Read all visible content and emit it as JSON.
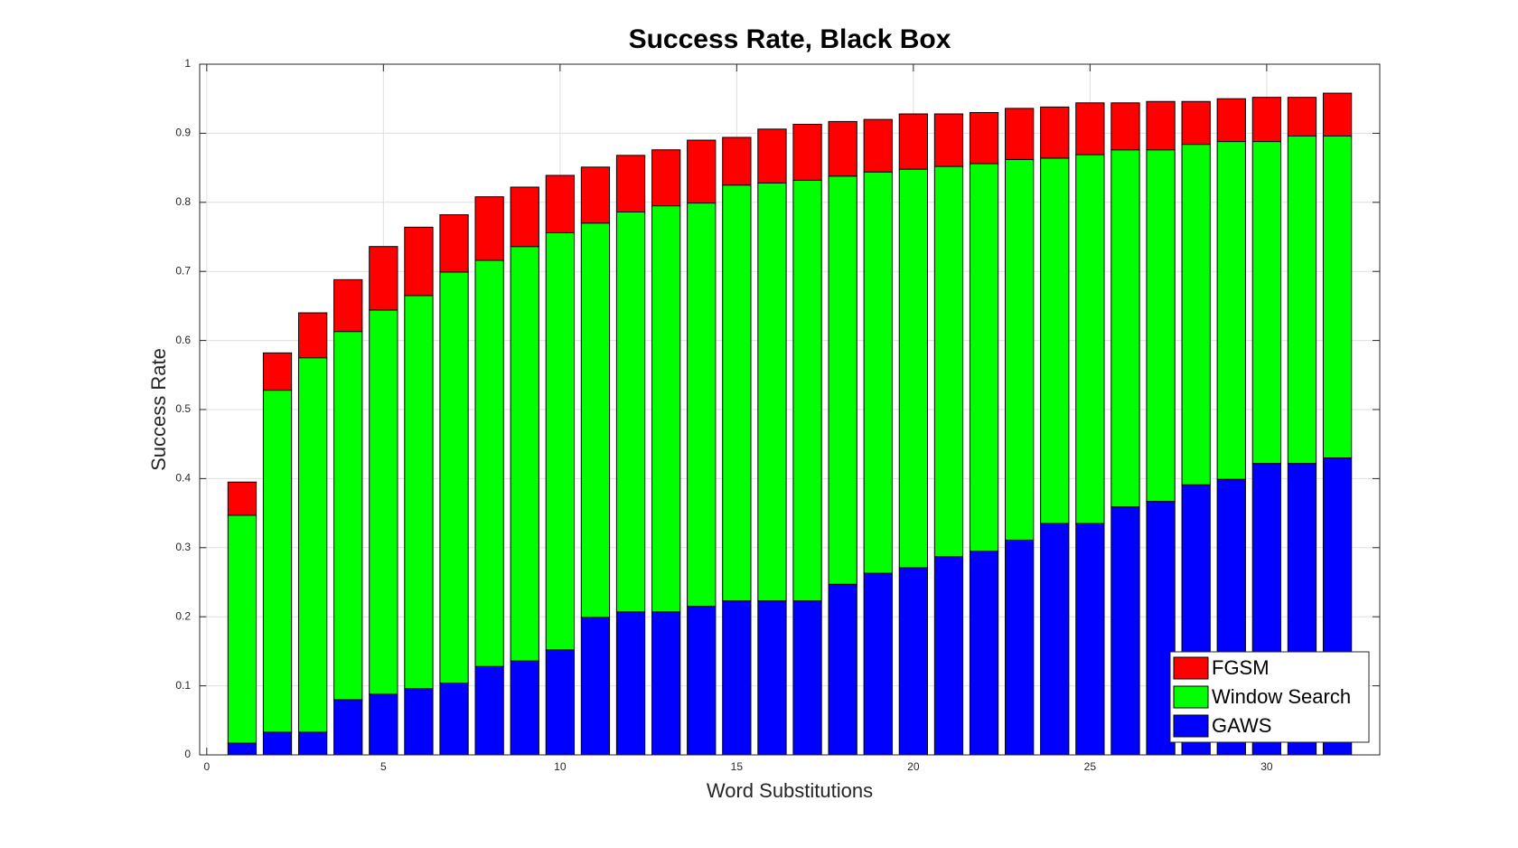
{
  "chart_data": {
    "type": "bar",
    "stacked": true,
    "title": "Success Rate, Black Box",
    "x_label": "Word Substitutions",
    "y_label": "Success Rate",
    "x": [
      1,
      2,
      3,
      4,
      5,
      6,
      7,
      8,
      9,
      10,
      11,
      12,
      13,
      14,
      15,
      16,
      17,
      18,
      19,
      20,
      21,
      22,
      23,
      24,
      25,
      26,
      27,
      28,
      29,
      30,
      31,
      32
    ],
    "series": [
      {
        "name": "GAWS",
        "color": "#0000ff",
        "values": [
          0.017,
          0.033,
          0.033,
          0.08,
          0.088,
          0.096,
          0.104,
          0.128,
          0.136,
          0.152,
          0.199,
          0.207,
          0.207,
          0.215,
          0.223,
          0.223,
          0.223,
          0.247,
          0.263,
          0.271,
          0.287,
          0.295,
          0.311,
          0.335,
          0.335,
          0.359,
          0.367,
          0.391,
          0.399,
          0.422,
          0.422,
          0.43
        ]
      },
      {
        "name": "Window Search",
        "color": "#00ff00",
        "values": [
          0.33,
          0.495,
          0.542,
          0.533,
          0.556,
          0.569,
          0.595,
          0.588,
          0.6,
          0.604,
          0.571,
          0.579,
          0.588,
          0.584,
          0.602,
          0.605,
          0.609,
          0.591,
          0.581,
          0.577,
          0.565,
          0.561,
          0.551,
          0.529,
          0.534,
          0.517,
          0.509,
          0.493,
          0.489,
          0.466,
          0.474,
          0.466
        ]
      },
      {
        "name": "FGSM",
        "color": "#ff0000",
        "values": [
          0.048,
          0.054,
          0.065,
          0.075,
          0.092,
          0.099,
          0.083,
          0.092,
          0.086,
          0.083,
          0.081,
          0.082,
          0.081,
          0.091,
          0.069,
          0.078,
          0.081,
          0.079,
          0.076,
          0.08,
          0.076,
          0.074,
          0.074,
          0.074,
          0.075,
          0.068,
          0.07,
          0.062,
          0.062,
          0.064,
          0.056,
          0.062
        ]
      }
    ],
    "xlim": [
      -0.2,
      33.2
    ],
    "xticks": [
      0,
      5,
      10,
      15,
      20,
      25,
      30
    ],
    "ylim": [
      0,
      1
    ],
    "yticks": [
      0,
      0.1,
      0.2,
      0.3,
      0.4,
      0.5,
      0.6,
      0.7,
      0.8,
      0.9,
      1
    ],
    "grid": true,
    "legend": "lower right"
  }
}
